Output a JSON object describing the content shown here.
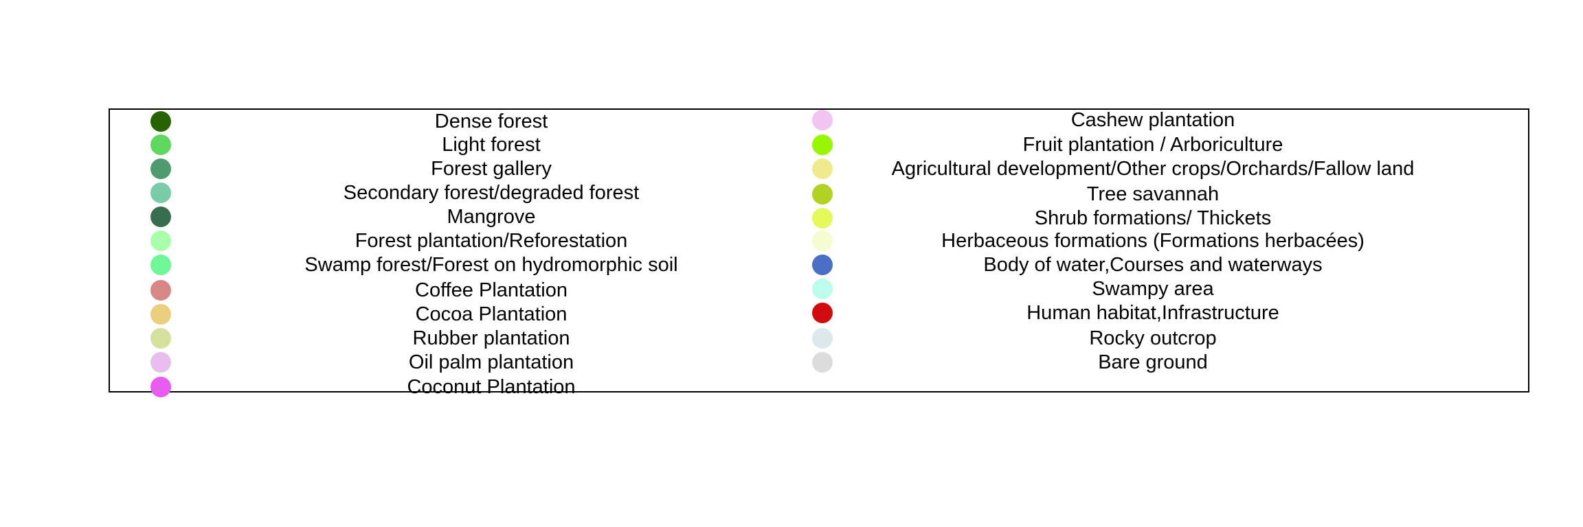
{
  "legend": {
    "left_items": [
      {
        "label": "Dense forest",
        "color": "#256400"
      },
      {
        "label": "Light forest",
        "color": "#5ed85e"
      },
      {
        "label": "Forest gallery",
        "color": "#4f9a6e"
      },
      {
        "label": "Secondary forest/degraded forest",
        "color": "#78cca8"
      },
      {
        "label": "Mangrove",
        "color": "#376e4e"
      },
      {
        "label": "Forest plantation/Reforestation",
        "color": "#aaffaa"
      },
      {
        "label": "Swamp forest/Forest on hydromorphic soil",
        "color": "#6ef796"
      },
      {
        "label": "Coffee Plantation",
        "color": "#d98686"
      },
      {
        "label": "Cocoa Plantation",
        "color": "#ebcf7c"
      },
      {
        "label": "Rubber plantation",
        "color": "#d4e09c"
      },
      {
        "label": "Oil palm plantation",
        "color": "#e8beee"
      },
      {
        "label": "Coconut Plantation",
        "color": "#e85cf0"
      }
    ],
    "right_items": [
      {
        "label": "Cashew plantation",
        "color": "#f2c4f2"
      },
      {
        "label": "Fruit plantation / Arboriculture",
        "color": "#96f700"
      },
      {
        "label": "Agricultural development/Other crops/Orchards/Fallow land",
        "color": "#f0ea8c"
      },
      {
        "label": "Tree savannah",
        "color": "#b2d223"
      },
      {
        "label": "Shrub formations/ Thickets",
        "color": "#e4fa5a"
      },
      {
        "label": "Herbaceous formations (Formations herbacées)",
        "color": "#f4fcd0"
      },
      {
        "label": "Body of water,Courses and waterways",
        "color": "#4a6fc4"
      },
      {
        "label": "Swampy area",
        "color": "#bcfcec"
      },
      {
        "label": "Human habitat,Infrastructure",
        "color": "#d00c0c"
      },
      {
        "label": "Rocky outcrop",
        "color": "#dde8ec"
      },
      {
        "label": "Bare ground",
        "color": "#dcdcdc"
      }
    ]
  }
}
